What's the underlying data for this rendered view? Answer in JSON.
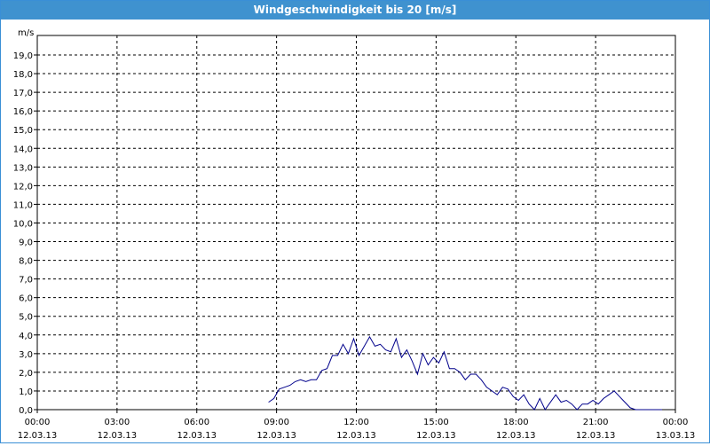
{
  "window": {
    "title": "Windgeschwindigkeit bis 20 [m/s]"
  },
  "chart_data": {
    "type": "line",
    "title": "Windgeschwindigkeit bis 20 [m/s]",
    "ylabel": "m/s",
    "xlabel": "",
    "ylim": [
      0,
      20
    ],
    "xlim_hours": [
      0,
      24
    ],
    "grid": true,
    "y_ticks": [
      "0,0",
      "1,0",
      "2,0",
      "3,0",
      "4,0",
      "5,0",
      "6,0",
      "7,0",
      "8,0",
      "9,0",
      "10,0",
      "11,0",
      "12,0",
      "13,0",
      "14,0",
      "15,0",
      "16,0",
      "17,0",
      "18,0",
      "19,0"
    ],
    "x_ticks": [
      {
        "time": "00:00",
        "date": "12.03.13"
      },
      {
        "time": "03:00",
        "date": "12.03.13"
      },
      {
        "time": "06:00",
        "date": "12.03.13"
      },
      {
        "time": "09:00",
        "date": "12.03.13"
      },
      {
        "time": "12:00",
        "date": "12.03.13"
      },
      {
        "time": "15:00",
        "date": "12.03.13"
      },
      {
        "time": "18:00",
        "date": "12.03.13"
      },
      {
        "time": "21:00",
        "date": "12.03.13"
      },
      {
        "time": "00:00",
        "date": "13.03.13"
      }
    ],
    "series": [
      {
        "color": "#00008b",
        "x_hours": [
          8.7,
          8.9,
          9.1,
          9.3,
          9.5,
          9.7,
          9.9,
          10.1,
          10.3,
          10.5,
          10.7,
          10.9,
          11.1,
          11.3,
          11.5,
          11.7,
          11.9,
          12.1,
          12.3,
          12.5,
          12.7,
          12.9,
          13.1,
          13.3,
          13.5,
          13.7,
          13.9,
          14.1,
          14.3,
          14.5,
          14.7,
          14.9,
          15.1,
          15.3,
          15.5,
          15.7,
          15.9,
          16.1,
          16.3,
          16.5,
          16.7,
          16.9,
          17.1,
          17.3,
          17.5,
          17.7,
          17.9,
          18.1,
          18.3,
          18.5,
          18.7,
          18.9,
          19.1,
          19.3,
          19.5,
          19.7,
          19.9,
          20.1,
          20.3,
          20.5,
          20.7,
          20.9,
          21.1,
          21.3,
          21.5,
          21.7,
          21.9,
          22.1,
          22.3,
          22.5,
          22.7,
          22.9,
          23.1,
          23.3,
          23.5
        ],
        "values": [
          0.4,
          0.6,
          1.1,
          1.2,
          1.3,
          1.5,
          1.6,
          1.5,
          1.6,
          1.6,
          2.1,
          2.2,
          2.9,
          2.9,
          3.5,
          3.0,
          3.8,
          2.9,
          3.4,
          3.9,
          3.4,
          3.5,
          3.2,
          3.1,
          3.8,
          2.8,
          3.2,
          2.6,
          1.9,
          3.0,
          2.4,
          2.8,
          2.5,
          3.1,
          2.2,
          2.2,
          2.0,
          1.6,
          1.9,
          1.9,
          1.6,
          1.2,
          1.0,
          0.8,
          1.2,
          1.1,
          0.7,
          0.5,
          0.8,
          0.3,
          0.0,
          0.6,
          0.0,
          0.4,
          0.8,
          0.4,
          0.5,
          0.3,
          0.0,
          0.3,
          0.3,
          0.5,
          0.3,
          0.6,
          0.8,
          1.0,
          0.7,
          0.4,
          0.1,
          0.0,
          0.0,
          0.0,
          0.0,
          0.0,
          0.0
        ]
      }
    ]
  }
}
